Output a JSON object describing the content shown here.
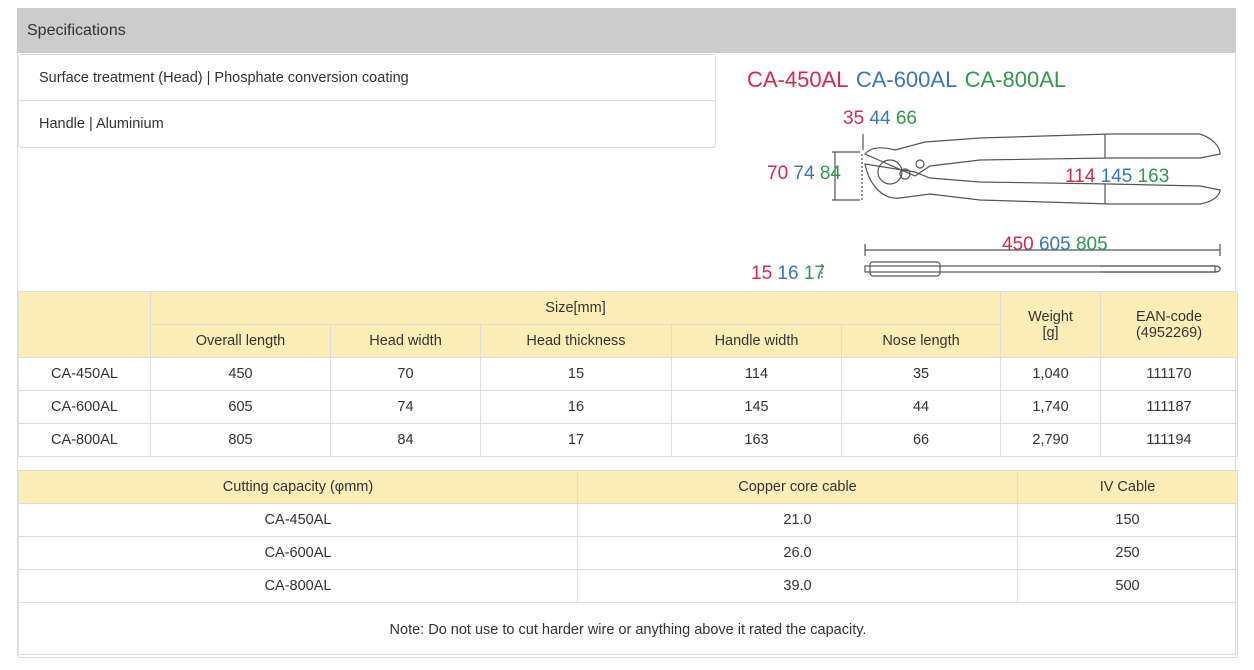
{
  "header": {
    "title": "Specifications"
  },
  "attributes": [
    "Surface treatment (Head) | Phosphate conversion coating",
    "Handle | Aluminium"
  ],
  "diagram": {
    "models": [
      "CA-450AL",
      "CA-600AL",
      "CA-800AL"
    ],
    "colors": [
      "#d42a4c",
      "#3b77b6",
      "#2f9a4b"
    ],
    "nose_length": [
      35,
      44,
      66
    ],
    "head_width": [
      70,
      74,
      84
    ],
    "handle_width": [
      114,
      145,
      163
    ],
    "overall_length": [
      450,
      605,
      805
    ],
    "head_thickness": [
      15,
      16,
      17
    ]
  },
  "size_table": {
    "group_header": "Size[mm]",
    "columns": [
      "Overall length",
      "Head width",
      "Head thickness",
      "Handle width",
      "Nose length"
    ],
    "weight_header": [
      "Weight",
      "[g]"
    ],
    "ean_header": [
      "EAN-code",
      "(4952269)"
    ],
    "rows": [
      [
        "CA-450AL",
        "450",
        "70",
        "15",
        "114",
        "35",
        "1,040",
        "111170"
      ],
      [
        "CA-600AL",
        "605",
        "74",
        "16",
        "145",
        "44",
        "1,740",
        "111187"
      ],
      [
        "CA-800AL",
        "805",
        "84",
        "17",
        "163",
        "66",
        "2,790",
        "111194"
      ]
    ]
  },
  "capacity_table": {
    "columns": [
      "Cutting capacity (φmm)",
      "Copper core cable",
      "IV Cable"
    ],
    "rows": [
      [
        "CA-450AL",
        "21.0",
        "150"
      ],
      [
        "CA-600AL",
        "26.0",
        "250"
      ],
      [
        "CA-800AL",
        "39.0",
        "500"
      ]
    ],
    "note": "Note: Do not use to cut harder wire or anything above it rated the capacity."
  }
}
